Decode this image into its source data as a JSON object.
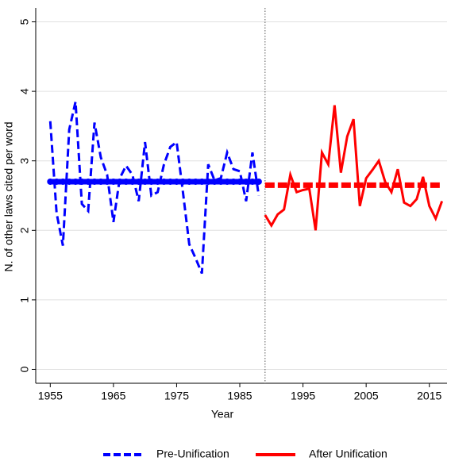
{
  "chart_data": {
    "type": "line",
    "xlabel": "Year",
    "ylabel": "N. of other laws cited per word",
    "xlim": [
      1952.7,
      2017.8
    ],
    "ylim": [
      -0.2,
      5.2
    ],
    "xticks": [
      1955,
      1965,
      1975,
      1985,
      1995,
      2005,
      2015
    ],
    "yticks": [
      0,
      1,
      2,
      3,
      4,
      5
    ],
    "grid": true,
    "vline": 1989,
    "legend": "bottom",
    "series": [
      {
        "name": "Pre-Unification",
        "color": "#0000ff",
        "dash": true,
        "mean": 2.7,
        "x": [
          1955,
          1956,
          1957,
          1958,
          1959,
          1960,
          1961,
          1962,
          1963,
          1964,
          1965,
          1966,
          1967,
          1968,
          1969,
          1970,
          1971,
          1972,
          1973,
          1974,
          1975,
          1976,
          1977,
          1978,
          1979,
          1980,
          1981,
          1982,
          1983,
          1984,
          1985,
          1986,
          1987,
          1988
        ],
        "values": [
          3.57,
          2.25,
          1.78,
          3.45,
          3.85,
          2.38,
          2.28,
          3.55,
          3.05,
          2.8,
          2.12,
          2.75,
          2.93,
          2.8,
          2.42,
          3.27,
          2.5,
          2.55,
          2.95,
          3.2,
          3.27,
          2.55,
          1.8,
          1.6,
          1.38,
          2.95,
          2.72,
          2.75,
          3.12,
          2.88,
          2.85,
          2.42,
          3.12,
          2.5
        ]
      },
      {
        "name": "After Unification",
        "color": "#ff0000",
        "dash": false,
        "mean": 2.65,
        "x": [
          1989,
          1990,
          1991,
          1992,
          1993,
          1994,
          1995,
          1996,
          1997,
          1998,
          1999,
          2000,
          2001,
          2002,
          2003,
          2004,
          2005,
          2006,
          2007,
          2008,
          2009,
          2010,
          2011,
          2012,
          2013,
          2014,
          2015,
          2016,
          2017
        ],
        "values": [
          2.22,
          2.07,
          2.23,
          2.3,
          2.8,
          2.55,
          2.58,
          2.6,
          2.0,
          3.12,
          2.95,
          3.8,
          2.83,
          3.35,
          3.6,
          2.35,
          2.75,
          2.87,
          3.0,
          2.7,
          2.55,
          2.88,
          2.4,
          2.35,
          2.45,
          2.77,
          2.35,
          2.17,
          2.42
        ]
      }
    ]
  }
}
